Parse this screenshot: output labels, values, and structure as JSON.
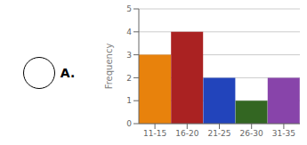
{
  "chart_data": {
    "type": "bar",
    "categories": [
      "11-15",
      "16-20",
      "21-25",
      "26-30",
      "31-35"
    ],
    "values": [
      3,
      4,
      2,
      1,
      2
    ],
    "colors": [
      "#E8820C",
      "#AA2222",
      "#2244BB",
      "#336622",
      "#8844AA"
    ],
    "ylabel": "Frequency",
    "ylim": [
      0,
      5
    ],
    "yticks": [
      0,
      1,
      2,
      3,
      4,
      5
    ],
    "grid": true,
    "annotations": [
      "A."
    ]
  }
}
